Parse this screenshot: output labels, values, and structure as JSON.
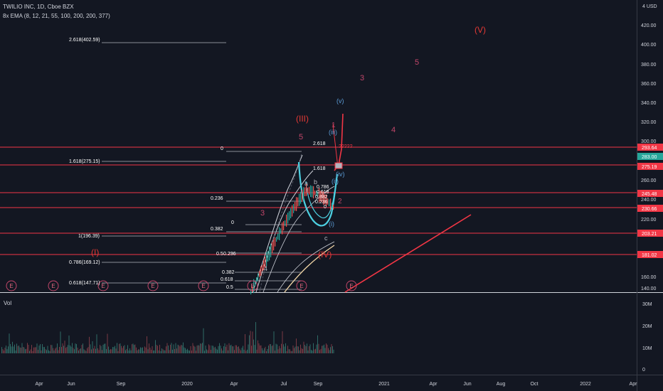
{
  "header": {
    "symbol_line": "TWILIO INC, 1D, Cboe BZX",
    "indicator_line": "8x EMA (8, 12, 21, 55, 100, 200, 200, 377)"
  },
  "volume_pane": {
    "label": "Vol",
    "ticks": [
      "30M",
      "20M",
      "10M",
      "0"
    ]
  },
  "price_axis": {
    "currency": "4 USD",
    "ticks": [
      "420.00",
      "400.00",
      "380.00",
      "360.00",
      "340.00",
      "320.00",
      "300.00",
      "260.00",
      "240.00",
      "220.00",
      "160.00",
      "140.00"
    ],
    "badges": [
      {
        "text": "293.64",
        "color": "#f23645"
      },
      {
        "text": "283.00",
        "color": "#26a69a"
      },
      {
        "text": "275.19",
        "color": "#f23645"
      },
      {
        "text": "245.48",
        "color": "#f23645"
      },
      {
        "text": "230.66",
        "color": "#f23645"
      },
      {
        "text": "203.21",
        "color": "#f23645"
      },
      {
        "text": "181.02",
        "color": "#f23645"
      }
    ]
  },
  "time_axis": {
    "labels": [
      "Apr",
      "Jun",
      "Sep",
      "2020",
      "Apr",
      "Jul",
      "Sep",
      "2021",
      "Apr",
      "Jun",
      "Aug",
      "Oct",
      "2022",
      "Apr"
    ]
  },
  "fib_labels": [
    "2.618(402.59)",
    "1.618(275.15)",
    "1(196.39)",
    "0.786(169.12)",
    "0.618(147.71)",
    "0",
    "0.236",
    "0.382",
    "0",
    "0.5",
    "0.236",
    "0.382",
    "0.618",
    "0.5",
    "2.618",
    "1.618",
    "0.786",
    "0.618",
    "0.382",
    "0.236",
    "0"
  ],
  "wave_labels": {
    "red": [
      "(V)",
      "(III)",
      "(I)",
      "(IV)"
    ],
    "pink": [
      "5",
      "3",
      "4",
      "5",
      "3",
      "1",
      "2"
    ],
    "blue": [
      "(v)",
      "(iii)",
      "(iv)",
      "(i)",
      "(ii)"
    ],
    "misc": [
      "?????",
      "a",
      "b",
      "c",
      "4"
    ]
  },
  "earnings_marker": "E",
  "colors": {
    "background": "#131722",
    "red_level": "#f23645",
    "teal": "#26a69a",
    "cyan_wave": "#4dd0e1",
    "wave_red": "#e53935",
    "wave_pink": "#c2466a",
    "wave_blue": "#5b9bd5"
  }
}
